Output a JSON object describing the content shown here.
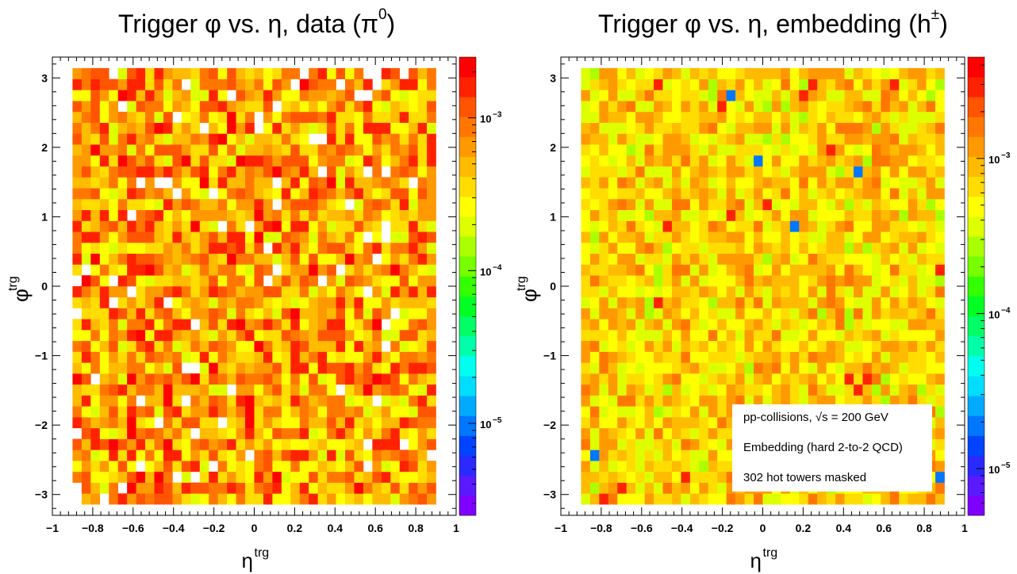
{
  "chart_data": [
    {
      "type": "heatmap",
      "title_parts": {
        "main": "Trigger φ vs. η, data (π",
        "sup": "0",
        "end": ")"
      },
      "xlabel": {
        "base": "η",
        "sup": "trg"
      },
      "ylabel": {
        "base": "φ",
        "sup": "trg"
      },
      "xlim": [
        -1,
        1
      ],
      "ylim": [
        -3.3,
        3.3
      ],
      "x_ticks": [
        "−1",
        "−0.8",
        "−0.6",
        "−0.4",
        "−0.2",
        "0",
        "0.2",
        "0.4",
        "0.6",
        "0.8",
        "1"
      ],
      "y_ticks": [
        "−3",
        "−2",
        "−1",
        "0",
        "1",
        "2",
        "3"
      ],
      "z_scale": "log",
      "z_range": [
        2.5e-06,
        0.0025
      ],
      "z_ticks": [
        {
          "base": "10",
          "exp": "−3",
          "value": 0.001
        },
        {
          "base": "10",
          "exp": "−4",
          "value": 0.0001
        },
        {
          "base": "10",
          "exp": "−5",
          "value": 1e-05
        }
      ],
      "bins": {
        "eta_range": [
          -0.9,
          0.9
        ],
        "phi_range": [
          -3.14159,
          3.14159
        ],
        "n_eta": 40,
        "n_phi": 40
      },
      "typical_value_range": [
        0.0002,
        0.002
      ],
      "empty_cells_visible": true
    },
    {
      "type": "heatmap",
      "title_parts": {
        "main": "Trigger φ vs. η, embedding (h",
        "sup": "±",
        "end": ")"
      },
      "xlabel": {
        "base": "η",
        "sup": "trg"
      },
      "ylabel": {
        "base": "φ",
        "sup": "trg"
      },
      "xlim": [
        -1,
        1
      ],
      "ylim": [
        -3.3,
        3.3
      ],
      "x_ticks": [
        "−1",
        "−0.8",
        "−0.6",
        "−0.4",
        "−0.2",
        "0",
        "0.2",
        "0.4",
        "0.6",
        "0.8",
        "1"
      ],
      "y_ticks": [
        "−3",
        "−2",
        "−1",
        "0",
        "1",
        "2",
        "3"
      ],
      "z_scale": "log",
      "z_range": [
        5e-06,
        0.0045
      ],
      "z_ticks": [
        {
          "base": "10",
          "exp": "−3",
          "value": 0.001
        },
        {
          "base": "10",
          "exp": "−4",
          "value": 0.0001
        },
        {
          "base": "10",
          "exp": "−5",
          "value": 1e-05
        }
      ],
      "bins": {
        "eta_range": [
          -0.9,
          0.9
        ],
        "phi_range": [
          -3.14159,
          3.14159
        ],
        "n_eta": 40,
        "n_phi": 40
      },
      "typical_value_range": [
        0.0003,
        0.0015
      ],
      "legend": [
        "pp-collisions, √s = 200 GeV",
        "Embedding (hard 2-to-2 QCD)",
        "302 hot towers masked"
      ],
      "legend_placement": "bottom-right"
    }
  ]
}
